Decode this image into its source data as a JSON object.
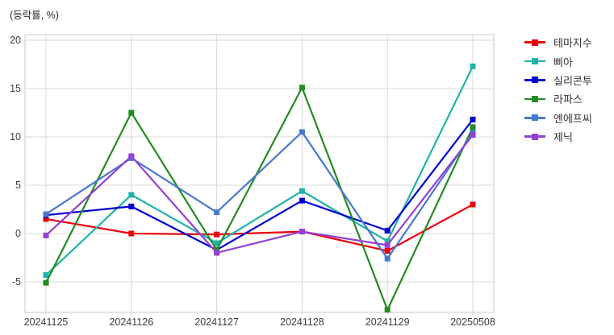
{
  "chart_data": {
    "type": "line",
    "title": "(등락률, %)",
    "xlabel": "",
    "ylabel": "등락률 (%)",
    "categories": [
      "20241125",
      "20241126",
      "20241127",
      "20241128",
      "20241129",
      "20250508"
    ],
    "series": [
      {
        "name": "테마지수",
        "color": "#e8000b",
        "values": [
          1.5,
          0.0,
          -0.1,
          0.2,
          -1.8,
          3.0
        ]
      },
      {
        "name": "삐아",
        "color": "#20b2aa",
        "values": [
          -4.3,
          4.0,
          -1.0,
          4.4,
          -0.8,
          17.3
        ]
      },
      {
        "name": "실리콘투",
        "color": "#0000cd",
        "values": [
          1.9,
          2.8,
          -1.7,
          3.4,
          0.3,
          11.8
        ]
      },
      {
        "name": "라파스",
        "color": "#228b22",
        "values": [
          -5.1,
          12.5,
          -1.7,
          15.1,
          -7.9,
          11.0
        ]
      },
      {
        "name": "엔에프씨",
        "color": "#4878cf",
        "values": [
          2.0,
          7.8,
          2.2,
          10.5,
          -2.6,
          10.4
        ]
      },
      {
        "name": "제닉",
        "color": "#9340d4",
        "values": [
          -0.2,
          8.0,
          -2.0,
          0.2,
          -1.2,
          10.2
        ]
      }
    ],
    "yticks": [
      20,
      15,
      10,
      5,
      0,
      -5
    ],
    "ylim": [
      -8.17,
      20.58
    ],
    "grid": true,
    "legend_position": "right"
  },
  "style": {
    "grid_color": "#d9d9d9",
    "frame_color": "#c9c9c9",
    "tick_text_color": "#3c3c3c",
    "background": "#ffffff"
  }
}
